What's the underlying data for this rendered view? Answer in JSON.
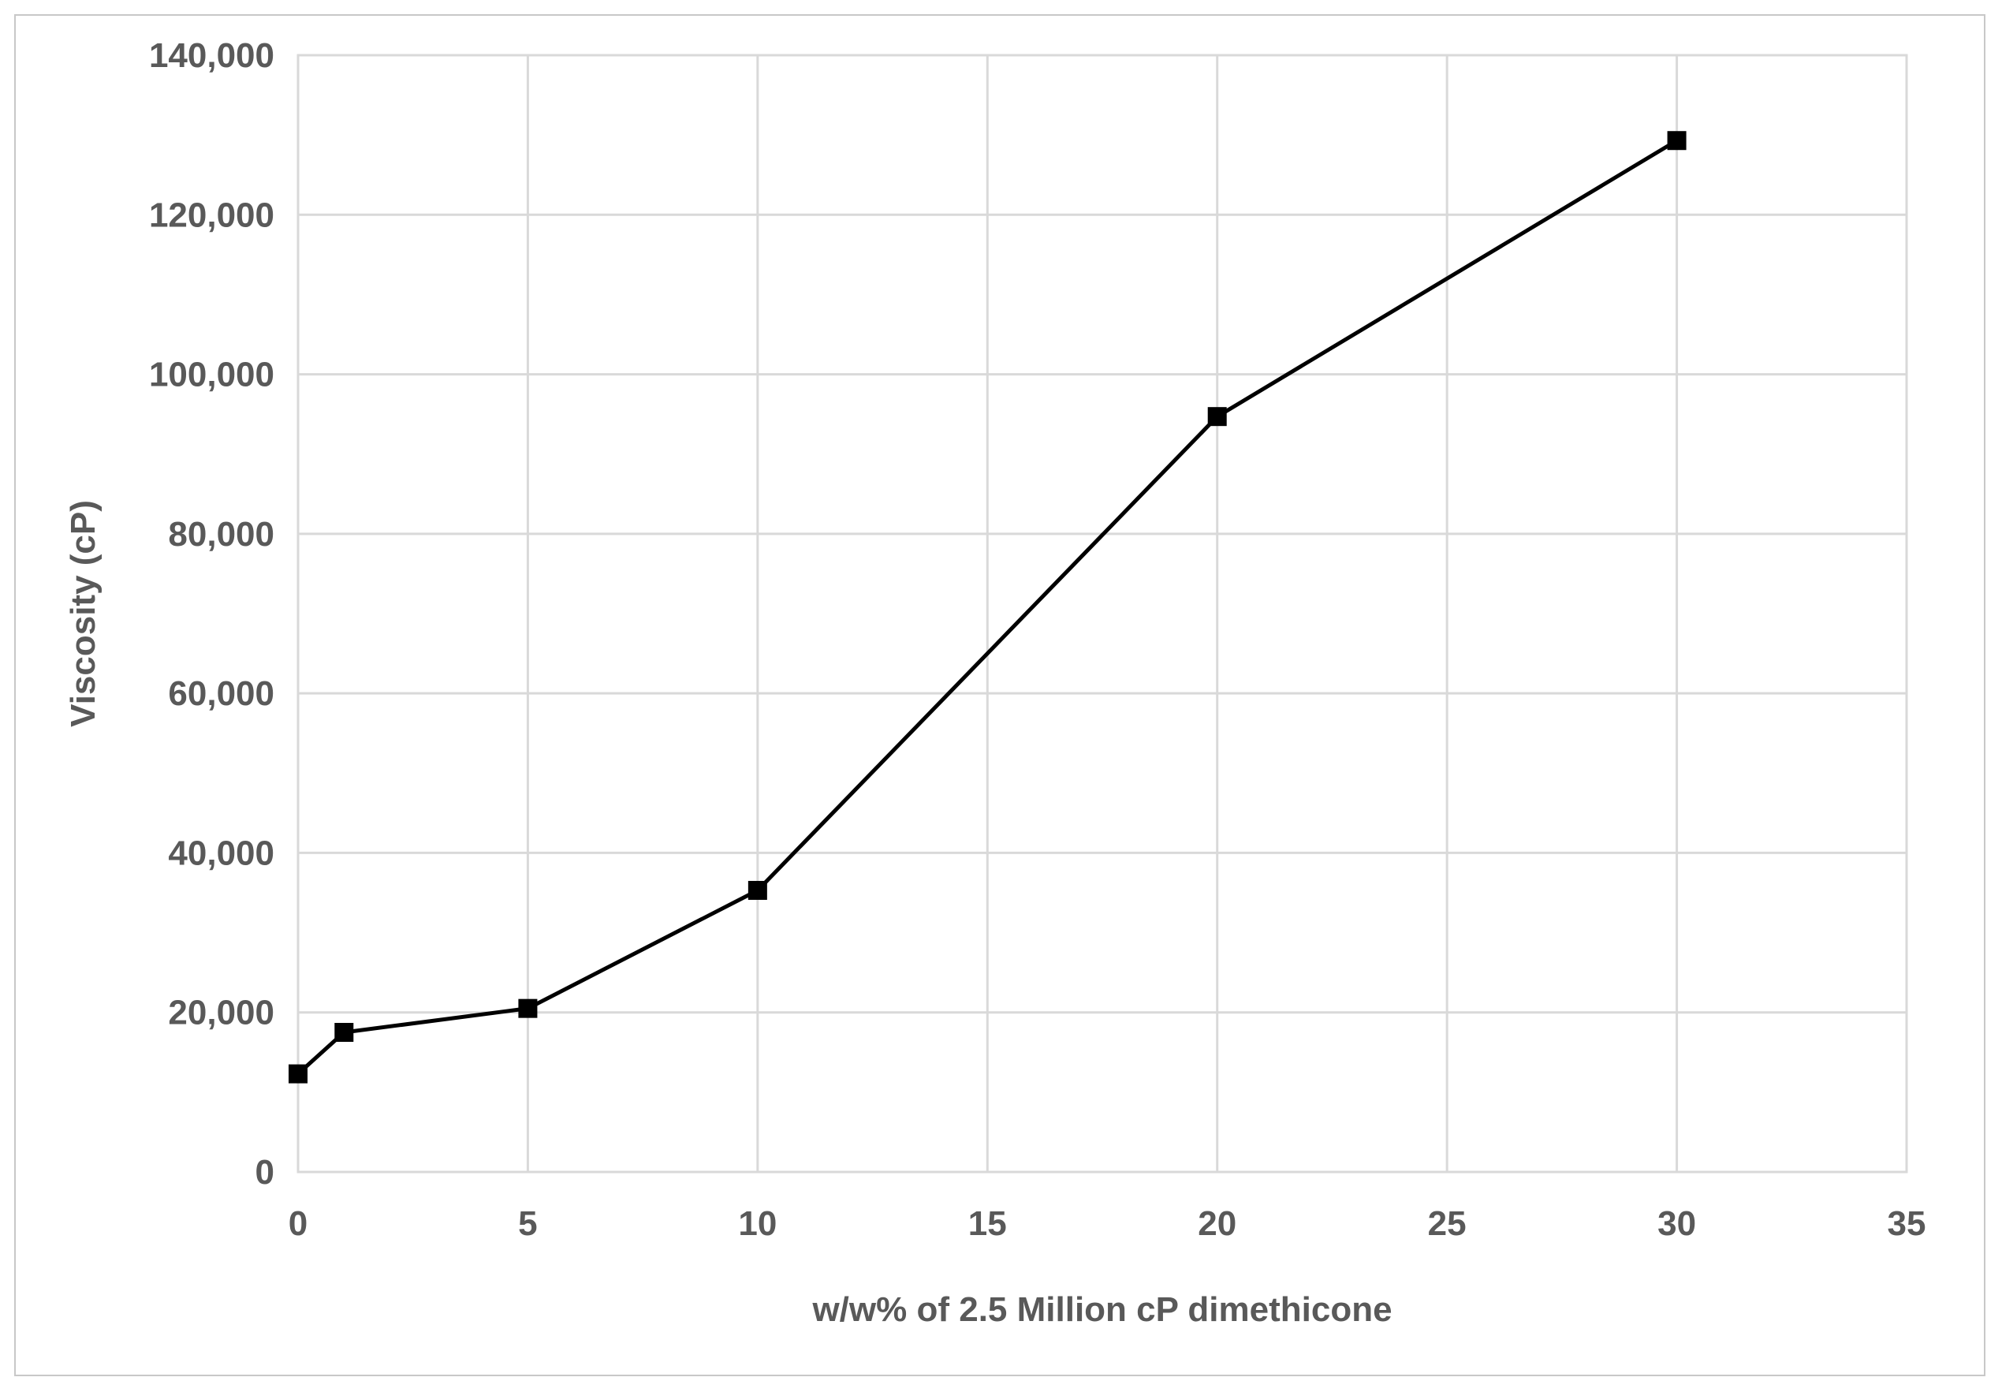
{
  "chart_data": {
    "type": "line",
    "xlabel": "w/w% of 2.5 Million cP dimethicone",
    "ylabel": "Viscosity (cP)",
    "xlim": [
      0,
      35
    ],
    "ylim": [
      0,
      140000
    ],
    "x_ticks": [
      0,
      5,
      10,
      15,
      20,
      25,
      30,
      35
    ],
    "x_tick_labels": [
      "0",
      "5",
      "10",
      "15",
      "20",
      "25",
      "30",
      "35"
    ],
    "y_ticks": [
      0,
      20000,
      40000,
      60000,
      80000,
      100000,
      120000,
      140000
    ],
    "y_tick_labels": [
      "0",
      "20,000",
      "40,000",
      "60,000",
      "80,000",
      "100,000",
      "120,000",
      "140,000"
    ],
    "grid": true,
    "legend": "none",
    "series": [
      {
        "color": "#000000",
        "marker": "square",
        "x": [
          0,
          1,
          5,
          10,
          20,
          30
        ],
        "y": [
          12300,
          17500,
          20500,
          35300,
          94700,
          129300
        ]
      }
    ]
  }
}
